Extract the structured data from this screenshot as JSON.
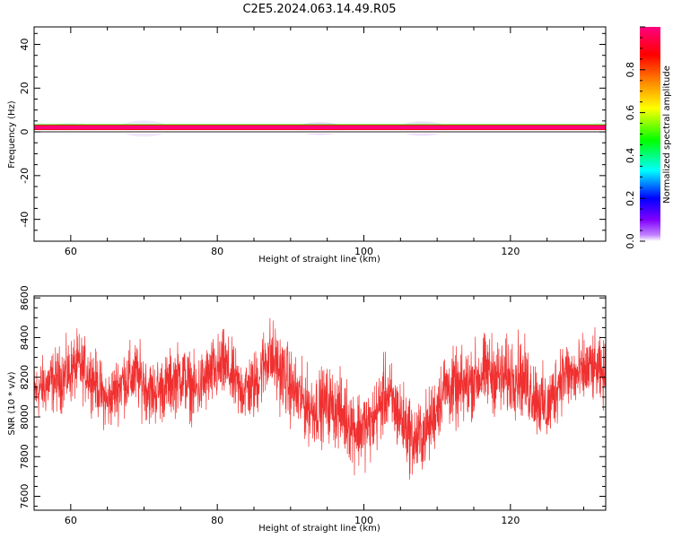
{
  "title": "C2E5.2024.063.14.49.R05",
  "chart_data": [
    {
      "type": "heatmap",
      "xlabel": "Height of straight line (km)",
      "ylabel": "Frequency (Hz)",
      "xlim": [
        55,
        133
      ],
      "ylim": [
        -50,
        48
      ],
      "xticks": [
        60,
        80,
        100,
        120
      ],
      "yticks": [
        40,
        20,
        0,
        -20,
        -40
      ],
      "grid": false,
      "bands": [
        {
          "f_min": 1.5,
          "f_max": 3.5,
          "amplitude": 0.5
        },
        {
          "f_min": 0.8,
          "f_max": 3.2,
          "amplitude": 0.85
        },
        {
          "f_min": 1.2,
          "f_max": 2.8,
          "amplitude": 1.0
        },
        {
          "f_min": -0.8,
          "f_max": 0.8,
          "amplitude": 0.05
        }
      ],
      "colorbar": {
        "label": "Normalized spectral amplitude",
        "range": [
          0,
          1
        ],
        "ticks": [
          "0.0",
          "0.2",
          "0.4",
          "0.6",
          "0.8"
        ],
        "colors": [
          "#ffffff",
          "#8000ff",
          "#0000ff",
          "#00ffff",
          "#00ff00",
          "#ffff00",
          "#ff8000",
          "#ff0000",
          "#ff0080"
        ]
      }
    },
    {
      "type": "line",
      "xlabel": "Height of straight line (km)",
      "ylabel": "SNR (10 * v/v)",
      "xlim": [
        55,
        133
      ],
      "ylim": [
        7530,
        8610
      ],
      "xticks": [
        60,
        80,
        100,
        120
      ],
      "yticks": [
        8600,
        8400,
        8200,
        8000,
        7800,
        7600
      ],
      "grid": false,
      "series": [
        {
          "color": "#f03030",
          "x": [
            55,
            57,
            59,
            61,
            63,
            65,
            67,
            69,
            71,
            73,
            75,
            77,
            79,
            81,
            83,
            85,
            87,
            89,
            91,
            93,
            95,
            97,
            99,
            101,
            103,
            105,
            107,
            109,
            111,
            113,
            115,
            117,
            119,
            121,
            123,
            125,
            127,
            129,
            131,
            133
          ],
          "y": [
            8120,
            8170,
            8200,
            8260,
            8200,
            8070,
            8180,
            8210,
            8120,
            8150,
            8210,
            8130,
            8210,
            8260,
            8140,
            8150,
            8320,
            8210,
            8100,
            8040,
            8070,
            8020,
            7940,
            7960,
            8120,
            8000,
            7870,
            7960,
            8150,
            8130,
            8190,
            8230,
            8190,
            8220,
            8130,
            8030,
            8220,
            8200,
            8250,
            8200
          ],
          "spread": [
            150,
            160,
            170,
            170,
            160,
            160,
            170,
            180,
            170,
            170,
            180,
            170,
            180,
            180,
            170,
            180,
            200,
            200,
            190,
            190,
            190,
            200,
            210,
            190,
            200,
            200,
            200,
            190,
            190,
            200,
            190,
            200,
            200,
            210,
            200,
            190,
            190,
            180,
            180,
            170
          ]
        }
      ]
    }
  ]
}
